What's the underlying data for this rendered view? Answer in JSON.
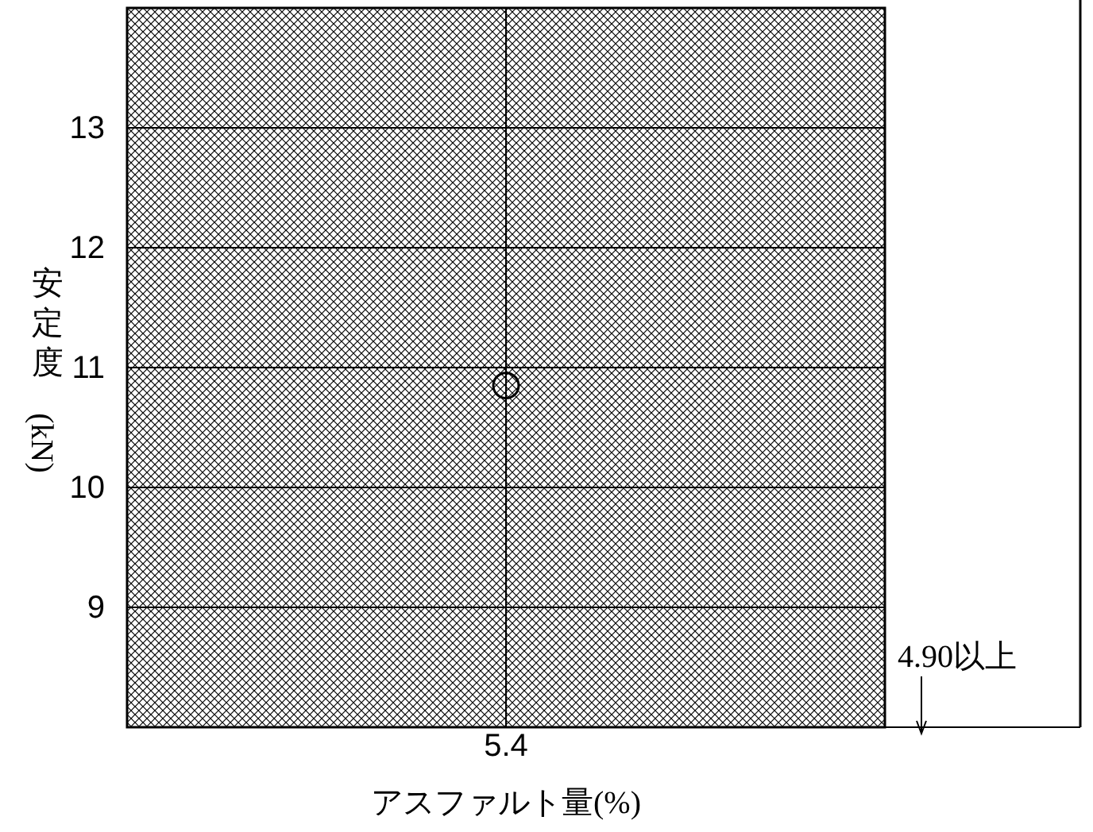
{
  "chart_data": {
    "type": "scatter",
    "xlabel": "アスファルト量(%)",
    "ylabel": "安 定 度 (kN)",
    "categories": [
      "5.4"
    ],
    "values": [
      10.85
    ],
    "color": "#000000",
    "marker": "circle",
    "ylim": [
      8,
      14
    ],
    "yticks": [
      9,
      10,
      11,
      12,
      13
    ],
    "grid": true,
    "bands": [
      {
        "axis": "y",
        "from": 8,
        "to": 14,
        "color": "#000000"
      }
    ],
    "annotations": [
      "4.90以上"
    ]
  }
}
